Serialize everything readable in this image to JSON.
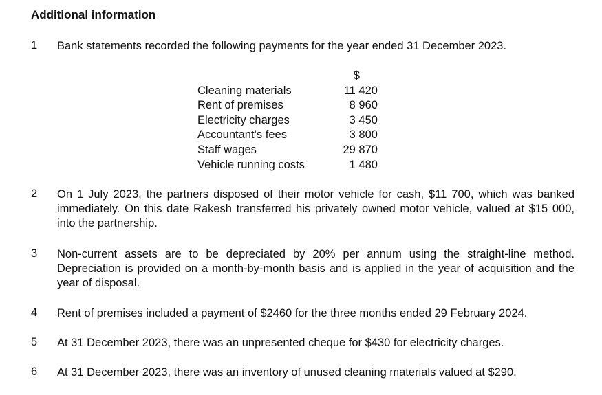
{
  "heading": "Additional information",
  "items": [
    {
      "num": "1",
      "text": "Bank statements recorded the following payments for the year ended 31 December 2023."
    },
    {
      "num": "2",
      "text": "On 1 July 2023, the partners disposed of their motor vehicle for cash, $11 700, which was banked immediately. On this date Rakesh transferred his privately owned motor vehicle, valued at $15 000, into the partnership."
    },
    {
      "num": "3",
      "text": "Non-current assets are to be depreciated by 20% per annum using the straight-line method. Depreciation is provided on a month-by-month basis and is applied in the year of acquisition and the year of disposal."
    },
    {
      "num": "4",
      "text": "Rent of premises included a payment of $2460 for the three months ended 29 February 2024."
    },
    {
      "num": "5",
      "text": "At 31 December 2023, there was an unpresented cheque for $430 for electricity charges."
    },
    {
      "num": "6",
      "text": "At 31 December 2023, there was an inventory of unused cleaning materials valued at $290."
    }
  ],
  "payments": {
    "currency": "$",
    "rows": [
      {
        "label": "Cleaning materials",
        "value": "11 420"
      },
      {
        "label": "Rent of premises",
        "value": "8 960"
      },
      {
        "label": "Electricity charges",
        "value": "3 450"
      },
      {
        "label": "Accountant’s fees",
        "value": "3 800"
      },
      {
        "label": "Staff wages",
        "value": "29 870"
      },
      {
        "label": "Vehicle running costs",
        "value": "1 480"
      }
    ]
  }
}
